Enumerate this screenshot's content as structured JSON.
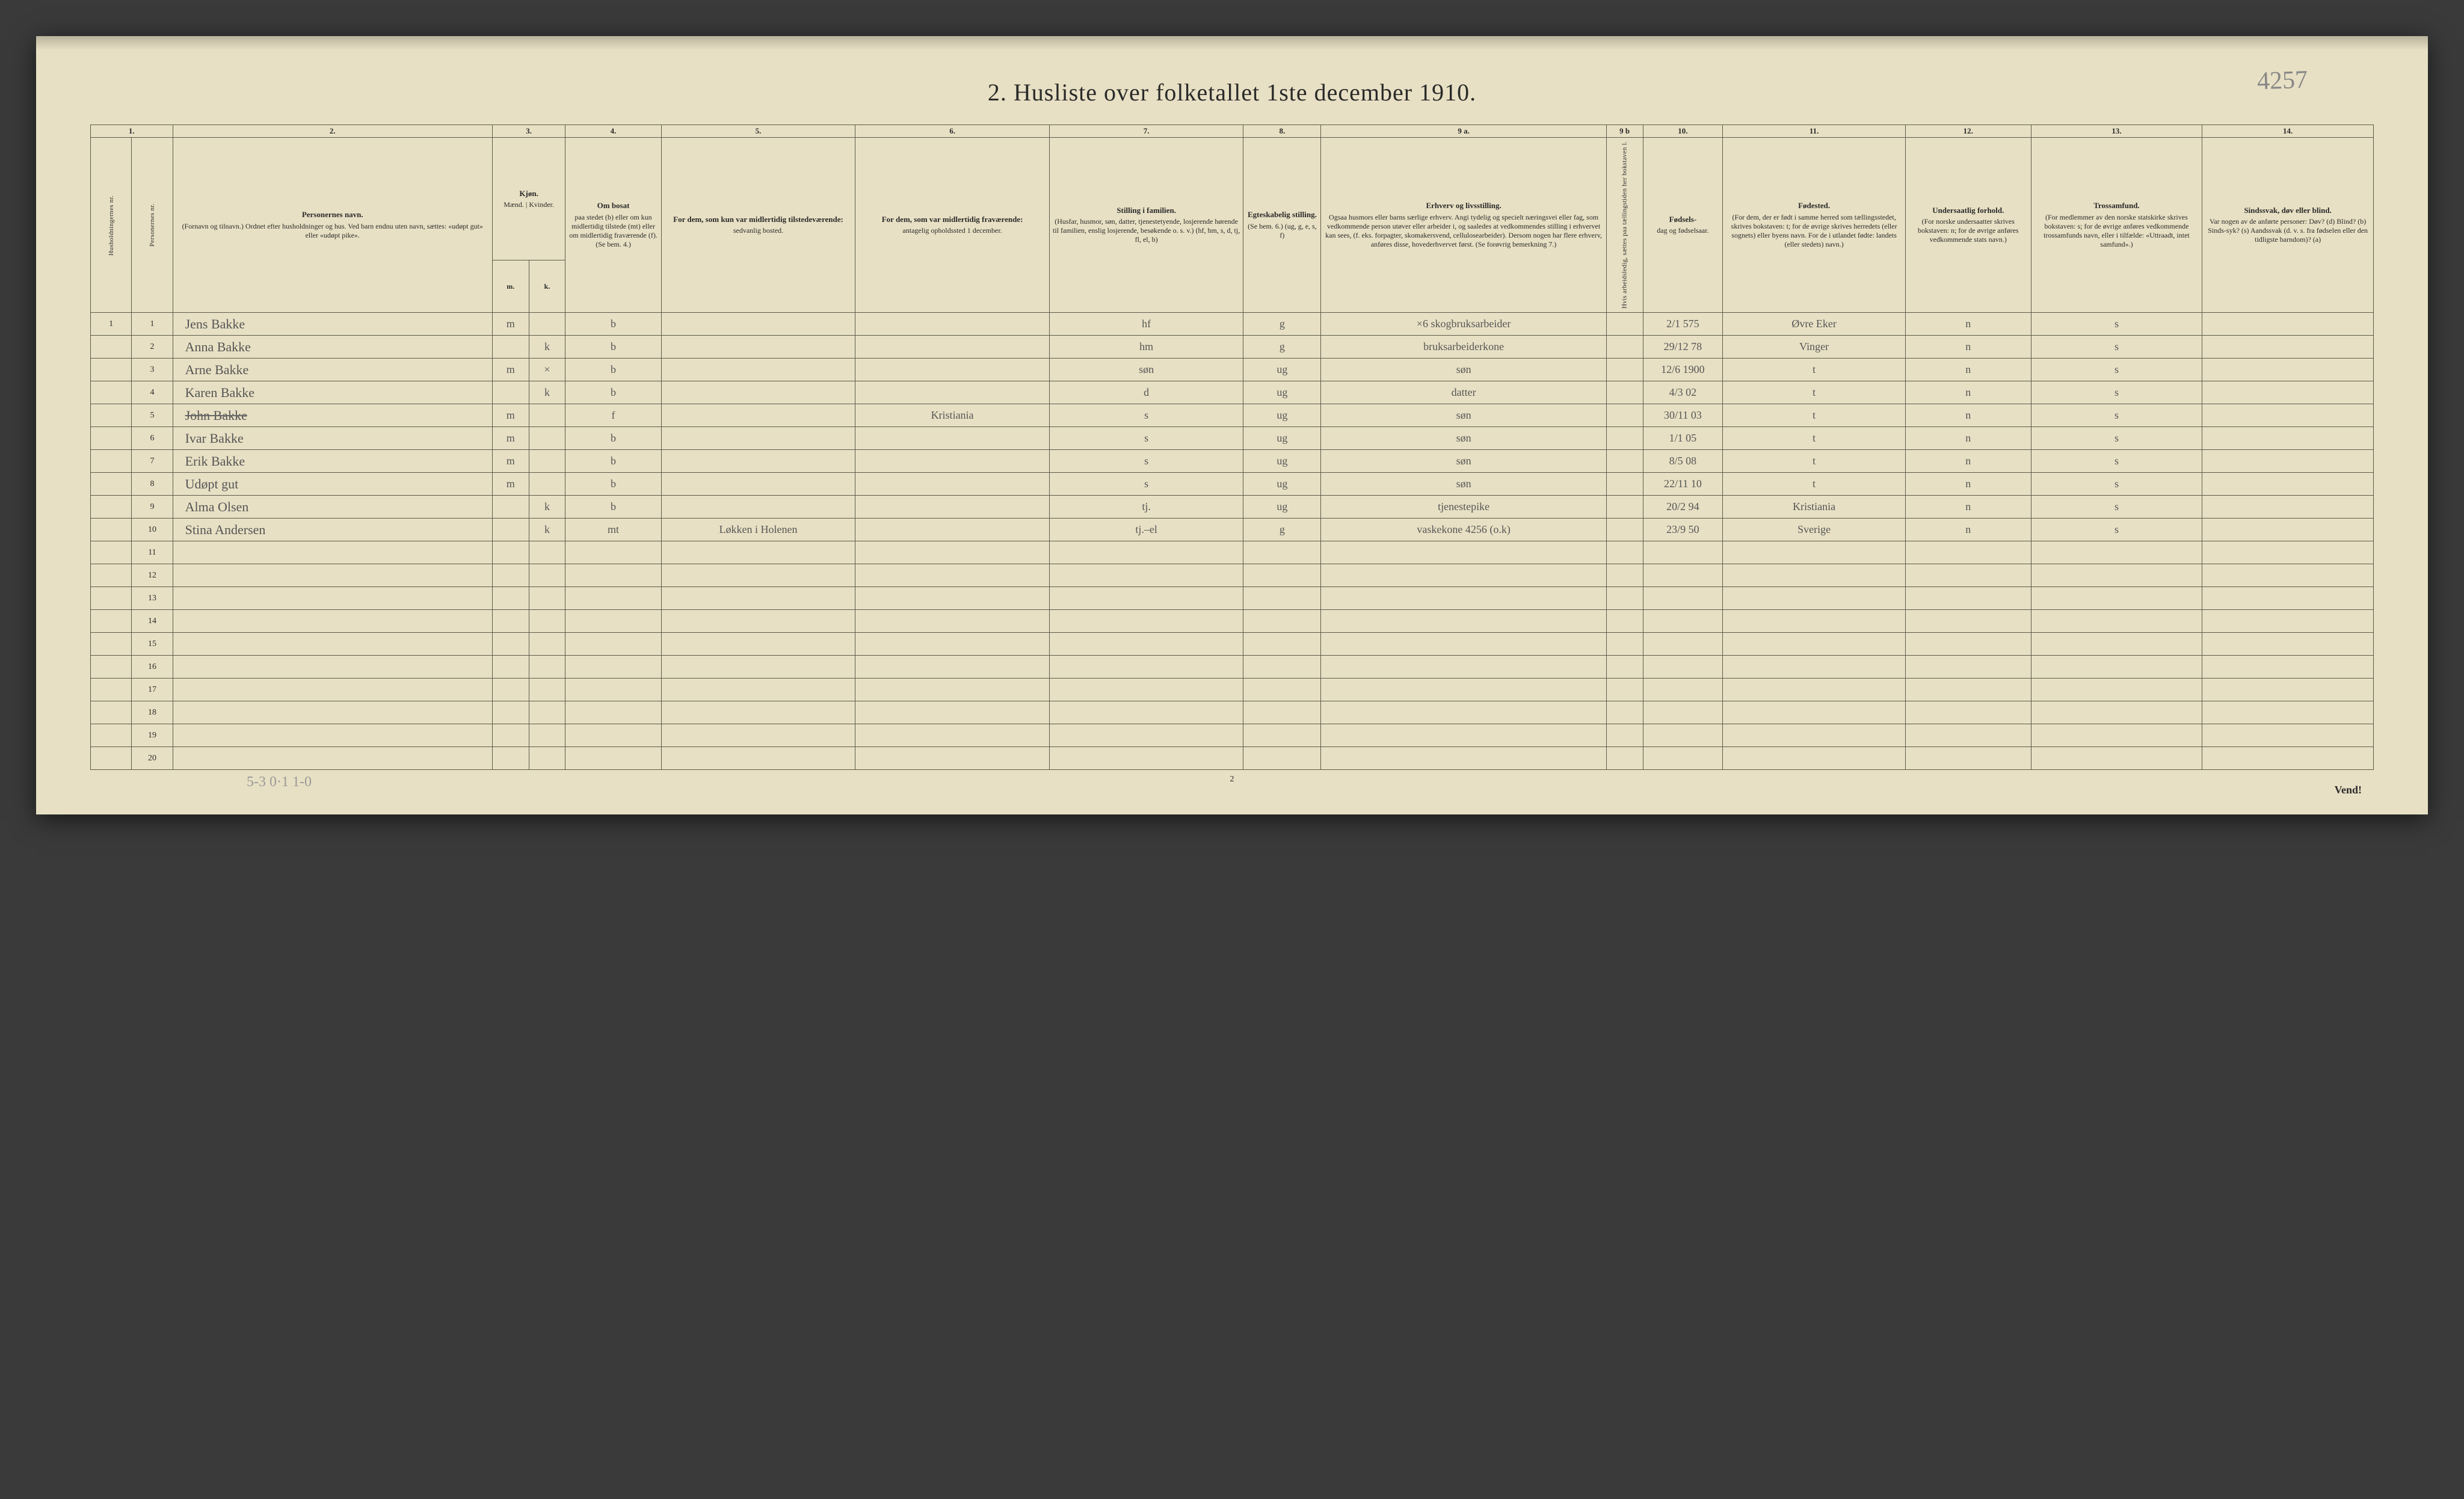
{
  "pencil_note": "4257",
  "title": "2.  Husliste over folketallet 1ste december 1910.",
  "colnums": [
    "1.",
    "2.",
    "3.",
    "4.",
    "5.",
    "6.",
    "7.",
    "8.",
    "9 a.",
    "9 b",
    "10.",
    "11.",
    "12.",
    "13.",
    "14."
  ],
  "headers": {
    "c1a": "Husholdningernes nr.",
    "c1b": "Personernes nr.",
    "c2_title": "Personernes navn.",
    "c2_body": "(Fornavn og tilnavn.)\nOrdnet efter husholdninger og hus.\nVed barn endnu uten navn, sættes: «udøpt gut» eller «udøpt pike».",
    "c3_title": "Kjøn.",
    "c3_body": "Mænd. | Kvinder.",
    "c3_m": "m.",
    "c3_k": "k.",
    "c4_title": "Om bosat",
    "c4_body": "paa stedet (b) eller om kun midlertidig tilstede (mt) eller om midlertidig fraværende (f). (Se bem. 4.)",
    "c5_title": "For dem, som kun var midlertidig tilstedeværende:",
    "c5_body": "sedvanlig bosted.",
    "c6_title": "For dem, som var midlertidig fraværende:",
    "c6_body": "antagelig opholdssted 1 december.",
    "c7_title": "Stilling i familien.",
    "c7_body": "(Husfar, husmor, søn, datter, tjenestetyende, losjerende hørende til familien, enslig losjerende, besøkende o. s. v.)\n(hf, hm, s, d, tj, fl, el, b)",
    "c8_title": "Egteskabelig stilling.",
    "c8_body": "(Se bem. 6.)\n(ug, g, e, s, f)",
    "c9a_title": "Erhverv og livsstilling.",
    "c9a_body": "Ogsaa husmors eller barns særlige erhverv. Angi tydelig og specielt næringsvei eller fag, som vedkommende person utøver eller arbeider i, og saaledes at vedkommendes stilling i erhvervet kan sees, (f. eks. forpagter, skomakersvend, cellulosearbeider). Dersom nogen har flere erhverv, anføres disse, hovederhvervet først. (Se forøvrig bemerkning 7.)",
    "c9b": "Hvis arbeidsledig, sættes paa tællingstiden her bokstaven l.",
    "c10_title": "Fødsels-",
    "c10_body": "dag og fødselsaar.",
    "c11_title": "Fødested.",
    "c11_body": "(For dem, der er født i samme herred som tællingsstedet, skrives bokstaven: t; for de øvrige skrives herredets (eller sognets) eller byens navn. For de i utlandet fødte: landets (eller stedets) navn.)",
    "c12_title": "Undersaatlig forhold.",
    "c12_body": "(For norske undersaatter skrives bokstaven: n; for de øvrige anføres vedkommende stats navn.)",
    "c13_title": "Trossamfund.",
    "c13_body": "(For medlemmer av den norske statskirke skrives bokstaven: s; for de øvrige anføres vedkommende trossamfunds navn, eller i tilfælde: «Uttraadt, intet samfund».)",
    "c14_title": "Sindssvak, døv eller blind.",
    "c14_body": "Var nogen av de anførte personer:\nDøv?  (d)\nBlind?  (b)\nSinds-syk?  (s)\nAandssvak (d. v. s. fra fødselen eller den tidligste barndom)?  (a)"
  },
  "rows": [
    {
      "hh": "1",
      "pn": "1",
      "name": "Jens Bakke",
      "m": "m",
      "k": "",
      "bmt": "b",
      "c5": "",
      "c6": "",
      "c7": "hf",
      "c8": "g",
      "c9a": "×6  skogbruksarbeider",
      "c9b": "",
      "c10": "2/1 575",
      "c11": "Øvre Eker",
      "c12": "n",
      "c13": "s",
      "c14": ""
    },
    {
      "hh": "",
      "pn": "2",
      "name": "Anna Bakke",
      "m": "",
      "k": "k",
      "bmt": "b",
      "c5": "",
      "c6": "",
      "c7": "hm",
      "c8": "g",
      "c9a": "bruksarbeiderkone",
      "c9b": "",
      "c10": "29/12 78",
      "c11": "Vinger",
      "c12": "n",
      "c13": "s",
      "c14": ""
    },
    {
      "hh": "",
      "pn": "3",
      "name": "Arne Bakke",
      "m": "m",
      "k": "×",
      "bmt": "b",
      "c5": "",
      "c6": "",
      "c7": "søn",
      "c8": "ug",
      "c9a": "søn",
      "c9b": "",
      "c10": "12/6 1900",
      "c11": "t",
      "c12": "n",
      "c13": "s",
      "c14": ""
    },
    {
      "hh": "",
      "pn": "4",
      "name": "Karen Bakke",
      "m": "",
      "k": "k",
      "bmt": "b",
      "c5": "",
      "c6": "",
      "c7": "d",
      "c8": "ug",
      "c9a": "datter",
      "c9b": "",
      "c10": "4/3 02",
      "c11": "t",
      "c12": "n",
      "c13": "s",
      "c14": ""
    },
    {
      "hh": "",
      "pn": "5",
      "name": "John Bakke",
      "m": "m",
      "k": "",
      "bmt": "f",
      "c5": "",
      "c6": "Kristiania",
      "c7": "s",
      "c8": "ug",
      "c9a": "søn",
      "c9b": "",
      "c10": "30/11 03",
      "c11": "t",
      "c12": "n",
      "c13": "s",
      "c14": "",
      "struck": true
    },
    {
      "hh": "",
      "pn": "6",
      "name": "Ivar Bakke",
      "m": "m",
      "k": "",
      "bmt": "b",
      "c5": "",
      "c6": "",
      "c7": "s",
      "c8": "ug",
      "c9a": "søn",
      "c9b": "",
      "c10": "1/1 05",
      "c11": "t",
      "c12": "n",
      "c13": "s",
      "c14": ""
    },
    {
      "hh": "",
      "pn": "7",
      "name": "Erik Bakke",
      "m": "m",
      "k": "",
      "bmt": "b",
      "c5": "",
      "c6": "",
      "c7": "s",
      "c8": "ug",
      "c9a": "søn",
      "c9b": "",
      "c10": "8/5 08",
      "c11": "t",
      "c12": "n",
      "c13": "s",
      "c14": ""
    },
    {
      "hh": "",
      "pn": "8",
      "name": "Udøpt gut",
      "m": "m",
      "k": "",
      "bmt": "b",
      "c5": "",
      "c6": "",
      "c7": "s",
      "c8": "ug",
      "c9a": "søn",
      "c9b": "",
      "c10": "22/11 10",
      "c11": "t",
      "c12": "n",
      "c13": "s",
      "c14": ""
    },
    {
      "hh": "",
      "pn": "9",
      "name": "Alma Olsen",
      "m": "",
      "k": "k",
      "bmt": "b",
      "c5": "",
      "c6": "",
      "c7": "tj.",
      "c8": "ug",
      "c9a": "tjenestepike",
      "c9b": "",
      "c10": "20/2 94",
      "c11": "Kristiania",
      "c12": "n",
      "c13": "s",
      "c14": ""
    },
    {
      "hh": "",
      "pn": "10",
      "name": "Stina Andersen",
      "m": "",
      "k": "k",
      "bmt": "mt",
      "c5": "Løkken i Holenen",
      "c6": "",
      "c7": "tj.–el",
      "c8": "g",
      "c9a": "vaskekone 4256 (o.k)",
      "c9b": "",
      "c10": "23/9 50",
      "c11": "Sverige",
      "c12": "n",
      "c13": "s",
      "c14": "",
      "mark": "×"
    },
    {
      "pn": "11"
    },
    {
      "pn": "12"
    },
    {
      "pn": "13"
    },
    {
      "pn": "14"
    },
    {
      "pn": "15"
    },
    {
      "pn": "16"
    },
    {
      "pn": "17"
    },
    {
      "pn": "18"
    },
    {
      "pn": "19"
    },
    {
      "pn": "20"
    }
  ],
  "footer_left": "5-3  0·1    1-0",
  "footer_center": "2",
  "footer_right": "Vend!",
  "colors": {
    "paper": "#e8e0c4",
    "ink": "#2a2a2a",
    "pencil": "#888888",
    "handwriting": "#555555",
    "border": "#5a5a4a",
    "page_bg": "#3a3a3a"
  },
  "typography": {
    "title_fontsize_pt": 30,
    "header_fontsize_pt": 9,
    "rownum_fontsize_pt": 11,
    "handwriting_fontsize_pt": 16
  },
  "layout": {
    "rows_total": 20,
    "columns_total": 14
  }
}
